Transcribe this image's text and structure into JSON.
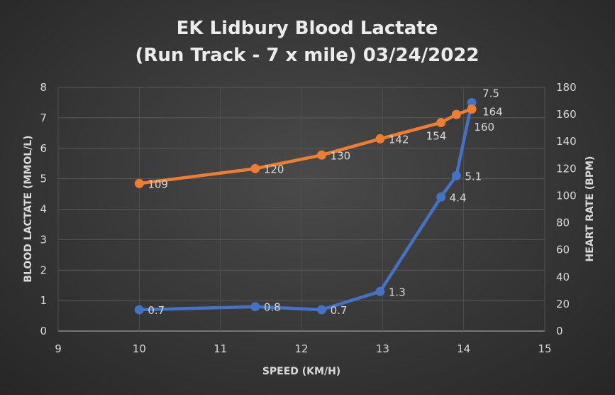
{
  "chart_data": {
    "type": "scatter",
    "title_lines": [
      "EK Lidbury Blood Lactate",
      "(Run Track - 7 x mile) 03/24/2022"
    ],
    "xlabel": "SPEED (KM/H)",
    "ylabel": "BLOOD LACTATE (MMOL/L)",
    "y2label": "HEART RATE (BPM)",
    "xlim": [
      9,
      15
    ],
    "ylim": [
      0,
      8
    ],
    "y2lim": [
      0,
      180
    ],
    "xticks": [
      "9",
      "10",
      "11",
      "12",
      "13",
      "14",
      "15"
    ],
    "yticks": [
      "0",
      "1",
      "2",
      "3",
      "4",
      "5",
      "6",
      "7",
      "8"
    ],
    "y2ticks": [
      "0",
      "20",
      "40",
      "60",
      "80",
      "100",
      "120",
      "140",
      "160",
      "180"
    ],
    "grid": true,
    "series": [
      {
        "name": "Blood Lactate",
        "axis": "left",
        "color": "#4472c4",
        "x": [
          10,
          11.43,
          12.25,
          12.97,
          13.72,
          13.91,
          14.1
        ],
        "y": [
          0.7,
          0.8,
          0.7,
          1.3,
          4.4,
          5.1,
          7.5
        ],
        "labels": [
          "0.7",
          "0.8",
          "0.7",
          "1.3",
          "4.4",
          "5.1",
          "7.5"
        ]
      },
      {
        "name": "Heart Rate",
        "axis": "right",
        "color": "#ed7d31",
        "x": [
          10,
          11.43,
          12.25,
          12.97,
          13.72,
          13.91,
          14.1
        ],
        "y": [
          109,
          120,
          130,
          142,
          154,
          160,
          164
        ],
        "labels": [
          "109",
          "120",
          "130",
          "142",
          "154",
          "160",
          "164"
        ]
      }
    ]
  }
}
